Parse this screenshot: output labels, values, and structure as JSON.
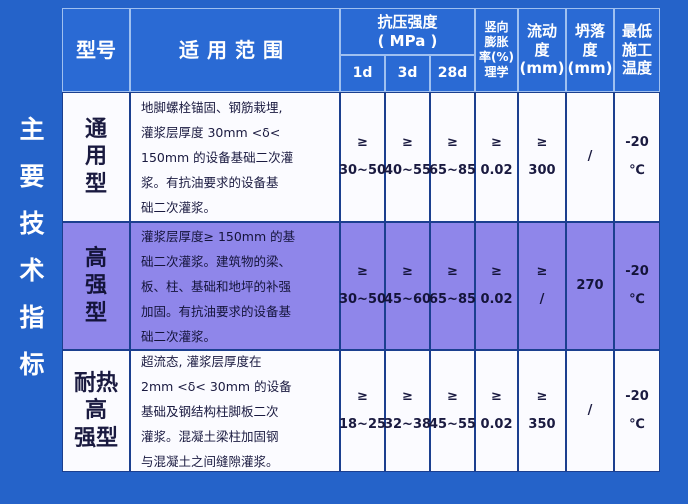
{
  "side_label": "主要技术指标",
  "header": {
    "model": "型号",
    "scope": "适用范围",
    "strength": "抗压强度",
    "strength_unit": "( MPa )",
    "days": [
      "1d",
      "3d",
      "28d"
    ],
    "expansion": [
      "竖向",
      "膨胀",
      "率(%)",
      "理学"
    ],
    "flow": [
      "流动",
      "度",
      "(mm)"
    ],
    "slump": [
      "坍落",
      "度",
      "(mm)"
    ],
    "temperature": [
      "最低",
      "施工",
      "温度"
    ]
  },
  "rows": [
    {
      "model": [
        "通",
        "用",
        "型"
      ],
      "scope": [
        "地脚螺栓锚固、钢筋栽埋,",
        "灌浆层厚度 30mm <δ<",
        "150mm 的设备基础二次灌",
        "浆。有抗油要求的设备基",
        "础二次灌浆。"
      ],
      "values": [
        [
          "≥",
          "30~50"
        ],
        [
          "≥",
          "40~55"
        ],
        [
          "≥",
          "65~85"
        ],
        [
          "≥",
          "0.02"
        ],
        [
          "≥",
          "300"
        ],
        [
          "/"
        ],
        [
          "-20",
          "℃"
        ]
      ]
    },
    {
      "model": [
        "高",
        "强",
        "型"
      ],
      "scope": [
        "灌浆层厚度≥ 150mm 的基",
        "础二次灌浆。建筑物的梁、",
        "板、柱、基础和地坪的补强",
        "加固。有抗油要求的设备基",
        "础二次灌浆。"
      ],
      "values": [
        [
          "≥",
          "30~50"
        ],
        [
          "≥",
          "45~60"
        ],
        [
          "≥",
          "65~85"
        ],
        [
          "≥",
          "0.02"
        ],
        [
          "≥",
          "/"
        ],
        [
          "270"
        ],
        [
          "-20",
          "℃"
        ]
      ]
    },
    {
      "model": [
        "耐热",
        "高",
        "强型"
      ],
      "scope": [
        "超流态, 灌浆层厚度在",
        "2mm <δ< 30mm 的设备",
        "基础及钢结构柱脚板二次",
        "灌浆。混凝土梁柱加固钢",
        "与混凝土之间缝隙灌浆。"
      ],
      "values": [
        [
          "≥",
          "18~25"
        ],
        [
          "≥",
          "32~38"
        ],
        [
          "≥",
          "45~55"
        ],
        [
          "≥",
          "0.02"
        ],
        [
          "≥",
          "350"
        ],
        [
          "/"
        ],
        [
          "-20",
          "℃"
        ]
      ]
    }
  ]
}
